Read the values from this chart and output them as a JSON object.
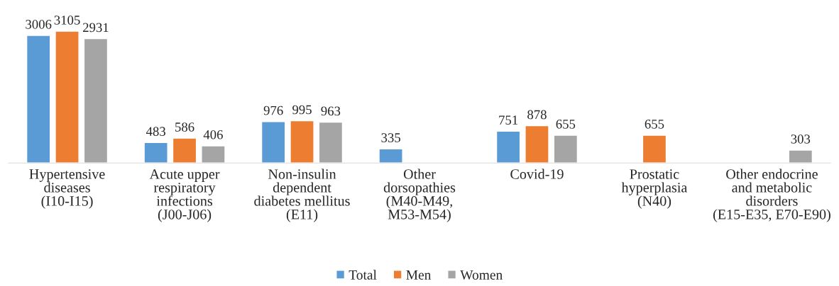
{
  "chart_data": {
    "type": "bar",
    "categories": [
      "Hypertensive\ndiseases\n(I10-I15)",
      "Acute upper\nrespiratory\ninfections\n(J00-J06)",
      "Non-insulin\ndependent\ndiabetes mellitus\n(E11)",
      "Other\ndorsopathies\n(M40-M49,\nM53-M54)",
      "Covid-19",
      "Prostatic\nhyperplasia\n(N40)",
      "Other endocrine\nand metabolic\ndisorders\n(E15-E35, E70-E90)"
    ],
    "series": [
      {
        "name": "Total",
        "color": "#5b9bd5",
        "values": [
          3006,
          483,
          976,
          335,
          751,
          null,
          null
        ]
      },
      {
        "name": "Men",
        "color": "#ed7d31",
        "values": [
          3105,
          586,
          995,
          null,
          878,
          655,
          null
        ]
      },
      {
        "name": "Women",
        "color": "#a5a5a5",
        "values": [
          2931,
          406,
          963,
          null,
          655,
          null,
          303
        ]
      }
    ],
    "data_labels": true,
    "legend": "bottom",
    "grid": false
  }
}
